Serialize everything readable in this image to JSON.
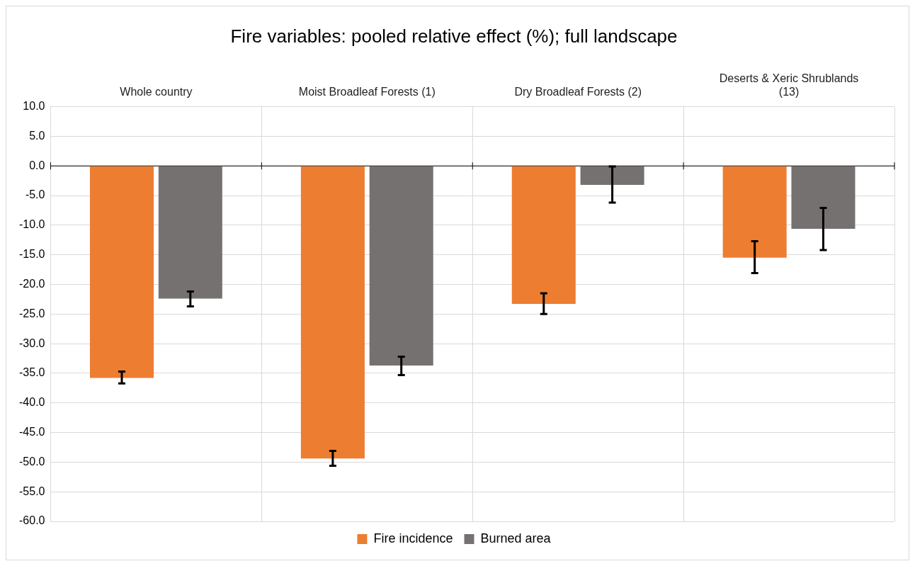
{
  "chart_data": {
    "type": "bar",
    "title": "Fire variables: pooled relative effect (%); full landscape",
    "categories": [
      "Whole country",
      "Moist Broadleaf Forests (1)",
      "Dry Broadleaf Forests (2)",
      "Deserts & Xeric Shrublands (13)"
    ],
    "series": [
      {
        "name": "Fire incidence",
        "color": "#ed7d31",
        "values": [
          -35.8,
          -49.4,
          -23.3,
          -15.5
        ],
        "errors": [
          [
            -36.7,
            -34.7
          ],
          [
            -50.6,
            -48.1
          ],
          [
            -25.0,
            -21.5
          ],
          [
            -18.1,
            -12.7
          ]
        ]
      },
      {
        "name": "Burned area",
        "color": "#767171",
        "values": [
          -22.4,
          -33.7,
          -3.2,
          -10.6
        ],
        "errors": [
          [
            -23.7,
            -21.2
          ],
          [
            -35.3,
            -32.2
          ],
          [
            -6.2,
            -0.1
          ],
          [
            -14.2,
            -7.1
          ]
        ]
      }
    ],
    "ylim": [
      -60,
      10
    ],
    "yticks": [
      {
        "value": 10,
        "label": "10.0"
      },
      {
        "value": 5,
        "label": "5.0"
      },
      {
        "value": 0,
        "label": "0.0"
      },
      {
        "value": -5,
        "label": "-5.0"
      },
      {
        "value": -10,
        "label": "-10.0"
      },
      {
        "value": -15,
        "label": "-15.0"
      },
      {
        "value": -20,
        "label": "-20.0"
      },
      {
        "value": -25,
        "label": "-25.0"
      },
      {
        "value": -30,
        "label": "-30.0"
      },
      {
        "value": -35,
        "label": "-35.0"
      },
      {
        "value": -40,
        "label": "-40.0"
      },
      {
        "value": -45,
        "label": "-45.0"
      },
      {
        "value": -50,
        "label": "-50.0"
      },
      {
        "value": -55,
        "label": "-55.0"
      },
      {
        "value": -60,
        "label": "-60.0"
      }
    ],
    "grid": true,
    "legend": "bottom"
  }
}
